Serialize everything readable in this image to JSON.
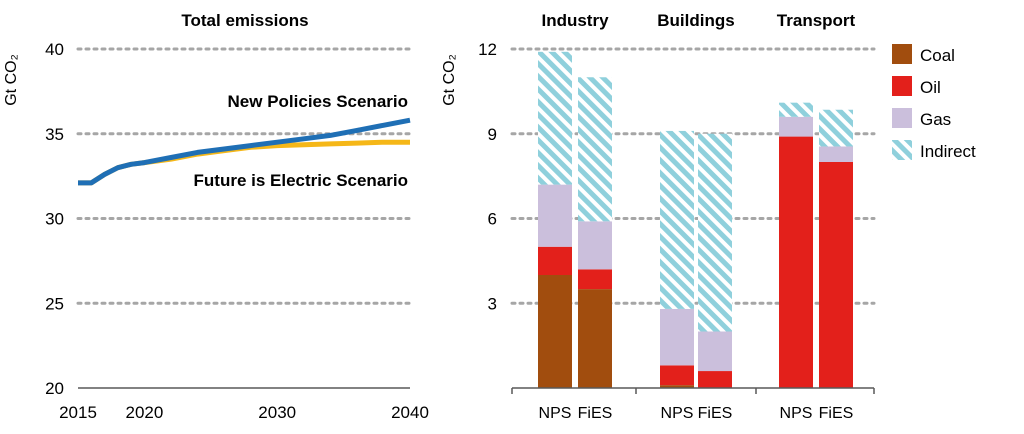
{
  "colors": {
    "new_policies": "#1f6fb5",
    "future_electric": "#f5b718",
    "coal": "#a14d0e",
    "oil": "#e3201b",
    "gas": "#cbbfdc",
    "indirect": "#8fd0dc",
    "grid": "#a6a6a6",
    "axis": "#595959"
  },
  "chart_data": [
    {
      "type": "line",
      "title": "Total emissions",
      "ylabel": "Gt CO₂",
      "xlabel": "",
      "xlim": [
        2015,
        2040
      ],
      "ylim": [
        20,
        40
      ],
      "x_ticks": [
        "2015",
        "2020",
        "2030",
        "2040"
      ],
      "y_ticks": [
        "20",
        "25",
        "30",
        "35",
        "40"
      ],
      "grid": "horizontal dotted",
      "series": [
        {
          "name": "New Policies Scenario",
          "color_key": "new_policies",
          "x": [
            2015,
            2016,
            2017,
            2018,
            2019,
            2020,
            2022,
            2024,
            2026,
            2028,
            2030,
            2032,
            2034,
            2036,
            2038,
            2040
          ],
          "y": [
            32.1,
            32.1,
            32.6,
            33.0,
            33.2,
            33.3,
            33.6,
            33.9,
            34.1,
            34.3,
            34.5,
            34.7,
            34.9,
            35.2,
            35.5,
            35.8
          ]
        },
        {
          "name": "Future is Electric Scenario",
          "color_key": "future_electric",
          "x": [
            2015,
            2016,
            2017,
            2018,
            2019,
            2020,
            2022,
            2024,
            2026,
            2028,
            2030,
            2032,
            2034,
            2036,
            2038,
            2040
          ],
          "y": [
            32.1,
            32.1,
            32.6,
            33.0,
            33.2,
            33.3,
            33.5,
            33.8,
            34.0,
            34.2,
            34.3,
            34.35,
            34.4,
            34.45,
            34.5,
            34.5
          ]
        }
      ]
    },
    {
      "type": "bar",
      "stacked": true,
      "ylabel": "Gt CO₂",
      "ylim": [
        0,
        12
      ],
      "y_ticks": [
        "3",
        "6",
        "9",
        "12"
      ],
      "grid": "horizontal dotted",
      "groups": [
        "Industry",
        "Buildings",
        "Transport"
      ],
      "categories": [
        "NPS",
        "FiES",
        "NPS",
        "FiES",
        "NPS",
        "FiES"
      ],
      "series": [
        {
          "name": "Coal",
          "color_key": "coal",
          "pattern": "solid",
          "values": [
            4.0,
            3.5,
            0.1,
            0.0,
            0.0,
            0.0
          ]
        },
        {
          "name": "Oil",
          "color_key": "oil",
          "pattern": "solid",
          "values": [
            1.0,
            0.7,
            0.7,
            0.6,
            8.9,
            8.0
          ]
        },
        {
          "name": "Gas",
          "color_key": "gas",
          "pattern": "solid",
          "values": [
            2.2,
            1.7,
            2.0,
            1.4,
            0.7,
            0.55
          ]
        },
        {
          "name": "Indirect",
          "color_key": "indirect",
          "pattern": "hatched",
          "values": [
            4.7,
            5.1,
            6.3,
            7.0,
            0.5,
            1.3
          ]
        }
      ],
      "legend": "right"
    }
  ]
}
